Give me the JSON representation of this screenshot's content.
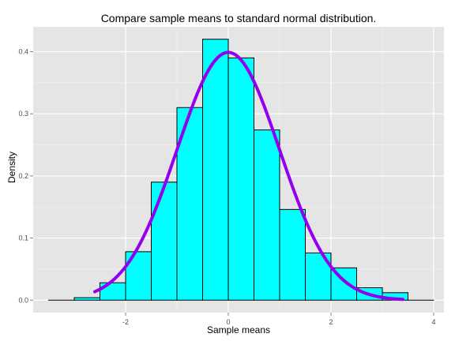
{
  "chart_data": {
    "type": "bar",
    "title": "Compare sample means to standard normal distribution.",
    "xlabel": "Sample means",
    "ylabel": "Density",
    "xlim": [
      -3.8,
      4.2
    ],
    "ylim": [
      -0.02,
      0.44
    ],
    "x_ticks": [
      -2,
      0,
      2,
      4
    ],
    "x_tick_labels": [
      "-2",
      "0",
      "2",
      "4"
    ],
    "y_ticks": [
      0.0,
      0.1,
      0.2,
      0.3,
      0.4
    ],
    "y_tick_labels": [
      "0.0",
      "0.1",
      "0.2",
      "0.3",
      "0.4"
    ],
    "grid": true,
    "histogram": {
      "bin_width": 0.5,
      "bin_starts": [
        -3.5,
        -3.0,
        -2.5,
        -2.0,
        -1.5,
        -1.0,
        -0.5,
        0.0,
        0.5,
        1.0,
        1.5,
        2.0,
        2.5,
        3.0,
        3.5
      ],
      "densities": [
        0.0,
        0.004,
        0.028,
        0.078,
        0.19,
        0.31,
        0.42,
        0.39,
        0.274,
        0.146,
        0.076,
        0.052,
        0.02,
        0.012,
        0.0
      ],
      "fill": "#00ffff",
      "edge": "#000000"
    },
    "normal_curve": {
      "distribution": "standard normal",
      "mean": 0,
      "sd": 1,
      "x_range": [
        -2.6,
        3.4
      ],
      "color": "#9400ee"
    },
    "colors": {
      "panel_background": "#e5e5e5",
      "grid_major": "#ffffff",
      "grid_minor": "#f2f2f2"
    }
  }
}
